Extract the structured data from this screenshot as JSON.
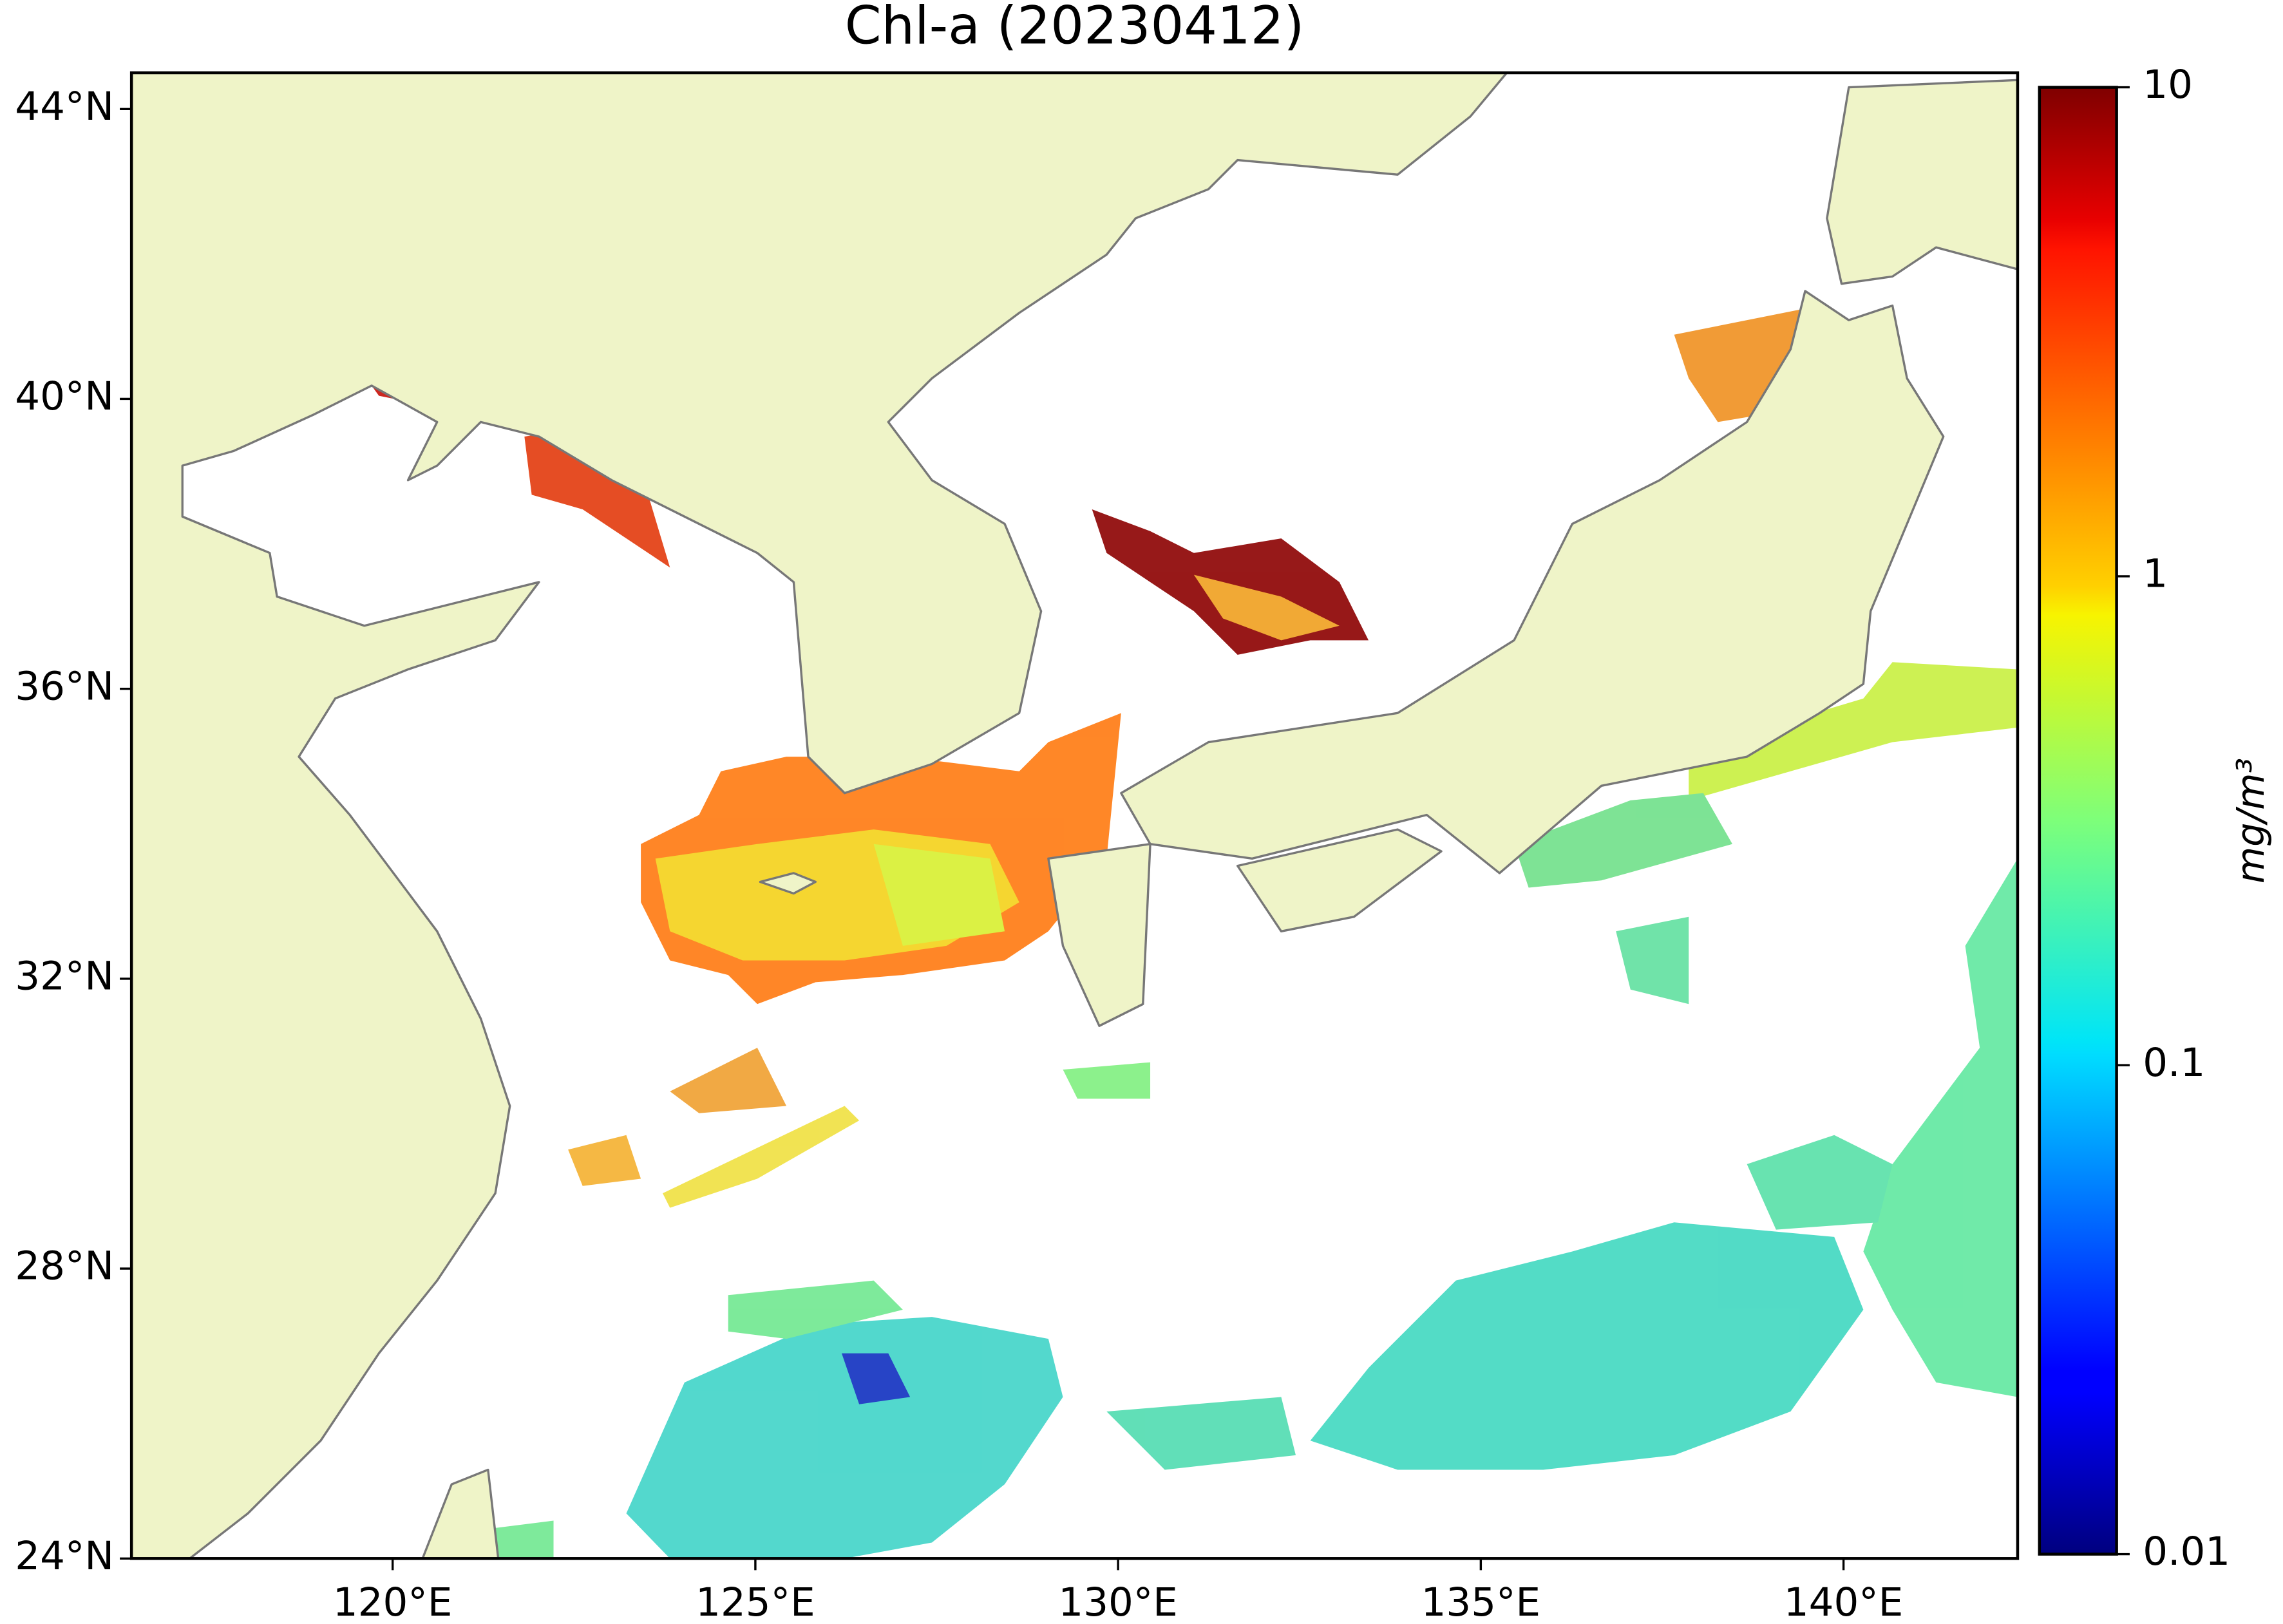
{
  "chart_data": {
    "type": "map",
    "title": "Chl-a (20230412)",
    "xlim": [
      116.4,
      142.4
    ],
    "ylim": [
      24,
      44.5
    ],
    "xticks": [
      {
        "value": 120,
        "label": "120°E"
      },
      {
        "value": 125,
        "label": "125°E"
      },
      {
        "value": 130,
        "label": "130°E"
      },
      {
        "value": 135,
        "label": "135°E"
      },
      {
        "value": 140,
        "label": "140°E"
      }
    ],
    "yticks": [
      {
        "value": 24,
        "label": "24°N"
      },
      {
        "value": 28,
        "label": "28°N"
      },
      {
        "value": 32,
        "label": "32°N"
      },
      {
        "value": 36,
        "label": "36°N"
      },
      {
        "value": 40,
        "label": "40°N"
      },
      {
        "value": 44,
        "label": "44°N"
      }
    ],
    "colorbar": {
      "label": "mg/m³",
      "scale": "log",
      "colormap": "jet",
      "lim": [
        0.01,
        10
      ],
      "ticks": [
        0.01,
        0.1,
        1,
        10
      ]
    }
  }
}
